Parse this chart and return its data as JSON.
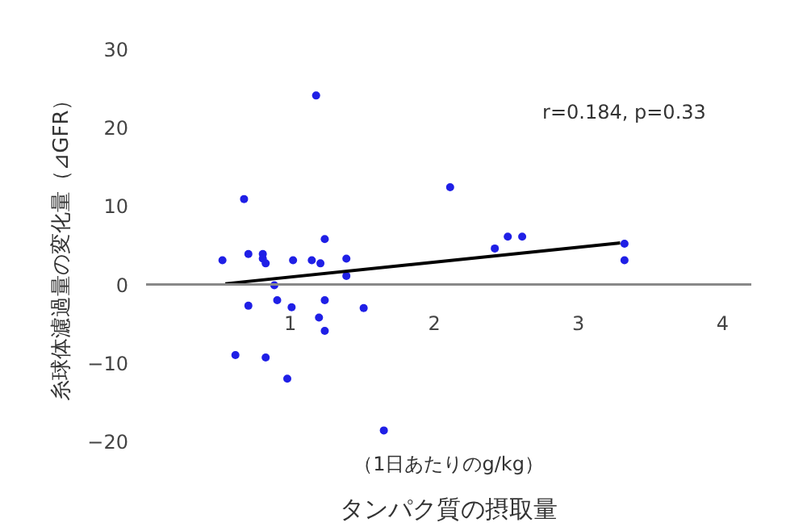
{
  "chart_data": {
    "type": "scatter",
    "xlabel": "タンパク質の摂取量",
    "subtitle": "（1日あたりのg/kg）",
    "ylabel": "糸球体濾過量の変化量（⊿GFR）",
    "annotations": [
      "r=0.184, p=0.33"
    ],
    "xlim": [
      0,
      4.2
    ],
    "ylim": [
      -20,
      30
    ],
    "xticks": [
      1,
      2,
      3,
      4
    ],
    "yticks": [
      -20,
      -10,
      0,
      10,
      20,
      30
    ],
    "grid": false,
    "series": [
      {
        "marker": "circle",
        "color": "#1f1fe6",
        "x": [
          0.53,
          0.68,
          0.71,
          0.81,
          0.81,
          0.83,
          0.89,
          0.71,
          0.91,
          1.02,
          1.15,
          1.18,
          1.21,
          1.24,
          1.24,
          1.2,
          1.24,
          1.39,
          1.39,
          1.51,
          0.62,
          0.83,
          0.98,
          1.65,
          2.11,
          2.42,
          2.51,
          2.61,
          3.32,
          3.32,
          1.01
        ],
        "values": [
          3.1,
          10.9,
          3.9,
          3.9,
          3.3,
          2.7,
          -0.1,
          -2.7,
          -2.0,
          3.1,
          3.1,
          24.1,
          2.7,
          5.8,
          -2.0,
          -4.2,
          -5.9,
          3.3,
          1.1,
          -3.0,
          -9.0,
          -9.3,
          -12.0,
          -18.6,
          12.4,
          4.6,
          6.1,
          6.1,
          5.2,
          3.1,
          -2.9
        ]
      },
      {
        "type": "line",
        "color": "#000000",
        "x": [
          0.55,
          3.29
        ],
        "values": [
          0.1,
          5.3
        ]
      }
    ]
  }
}
